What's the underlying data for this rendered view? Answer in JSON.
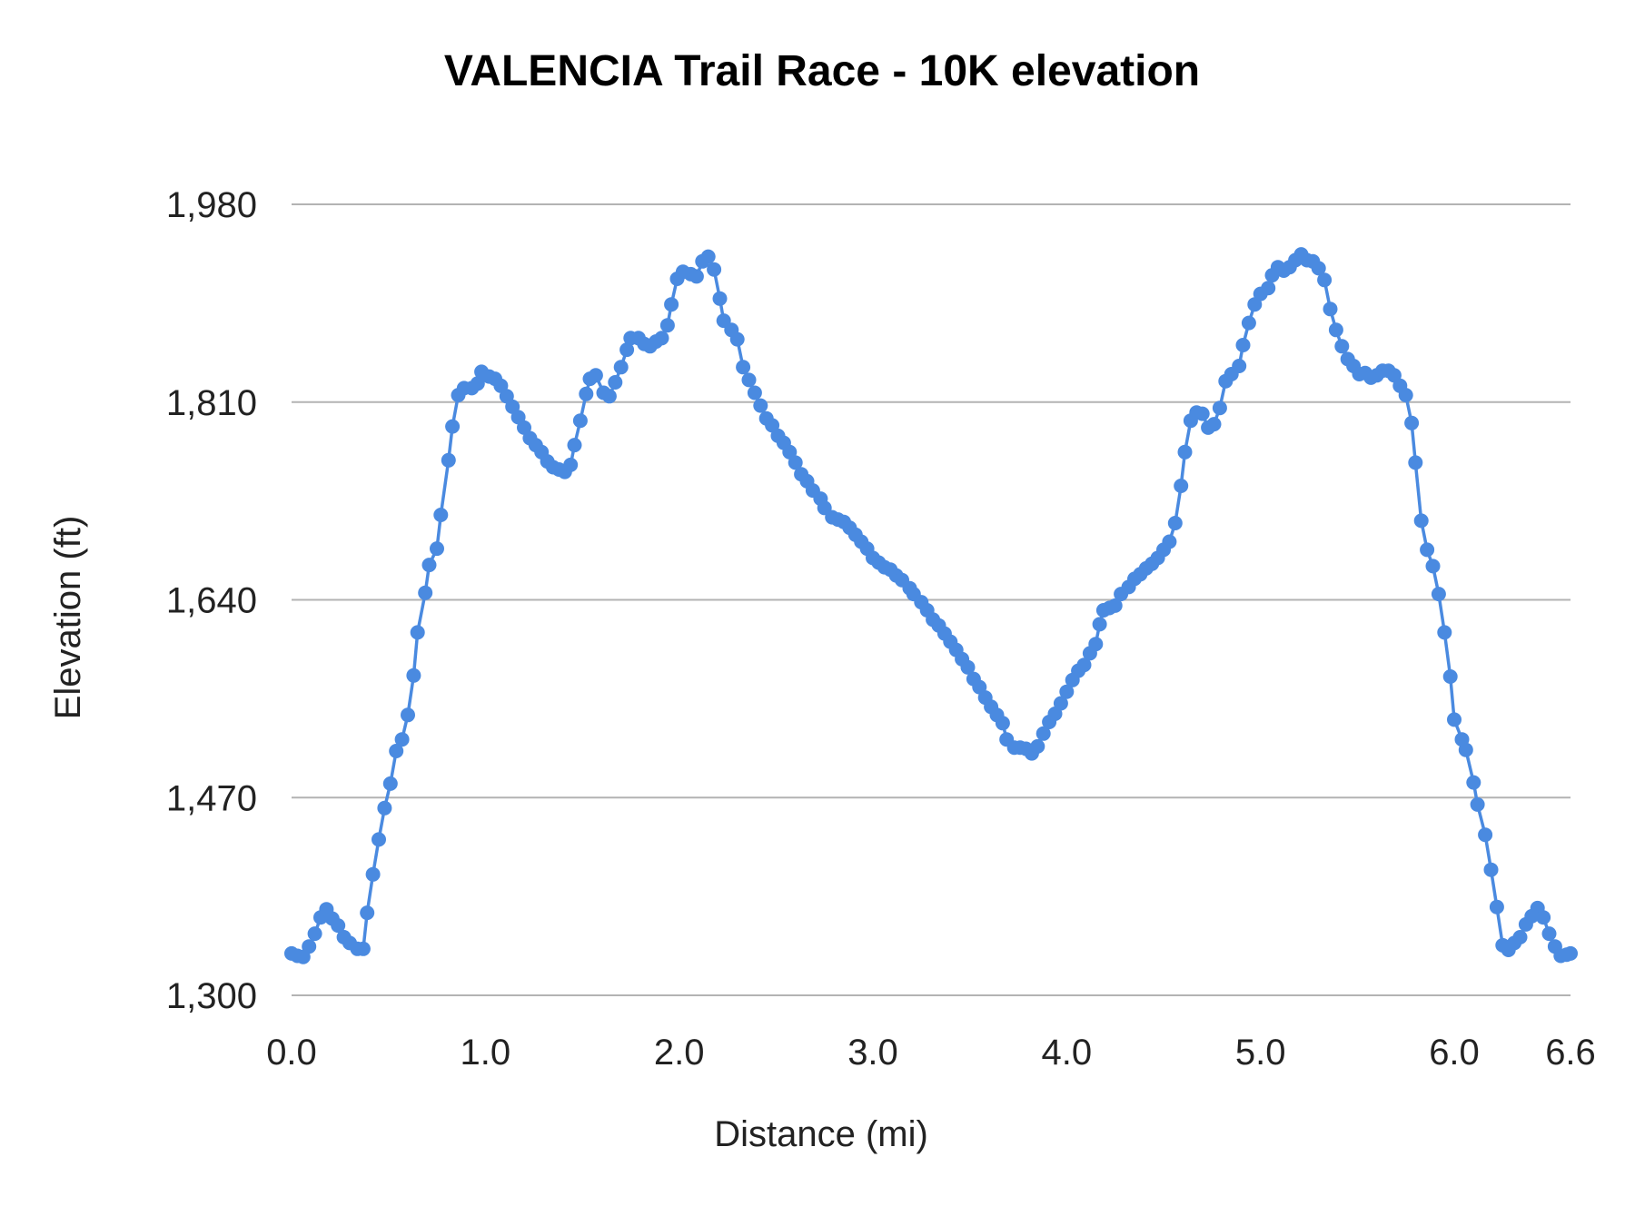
{
  "chart_data": {
    "type": "line",
    "title": "VALENCIA Trail Race - 10K elevation",
    "xlabel": "Distance (mi)",
    "ylabel": "Elevation (ft)",
    "xlim": [
      0,
      6.6
    ],
    "ylim": [
      1300,
      1980
    ],
    "xticks": [
      0,
      1,
      2,
      3,
      4,
      5,
      6,
      6.6
    ],
    "xtick_labels": [
      "0.0",
      "1.0",
      "2.0",
      "3.0",
      "4.0",
      "5.0",
      "6.0",
      "6.6"
    ],
    "yticks": [
      1300,
      1470,
      1640,
      1810,
      1980
    ],
    "ytick_labels": [
      "1,300",
      "1,470",
      "1,640",
      "1,810",
      "1,980"
    ],
    "grid": "horizontal",
    "markers": true,
    "color": "#4a8ae0",
    "gridColor": "#b3b3b3",
    "series": [
      {
        "x": [
          0.0,
          0.03,
          0.06,
          0.09,
          0.12,
          0.15,
          0.18,
          0.21,
          0.24,
          0.27,
          0.3,
          0.34,
          0.37,
          0.39,
          0.42,
          0.45,
          0.48,
          0.51,
          0.54,
          0.57,
          0.6,
          0.63,
          0.65,
          0.69,
          0.71,
          0.75,
          0.77,
          0.81,
          0.83,
          0.86,
          0.89,
          0.93,
          0.96,
          0.98,
          1.02,
          1.05,
          1.08,
          1.11,
          1.14,
          1.17,
          1.2,
          1.23,
          1.26,
          1.29,
          1.32,
          1.35,
          1.38,
          1.41,
          1.44,
          1.46,
          1.49,
          1.52,
          1.54,
          1.57,
          1.61,
          1.64,
          1.67,
          1.7,
          1.73,
          1.75,
          1.79,
          1.82,
          1.85,
          1.88,
          1.91,
          1.94,
          1.96,
          1.99,
          2.02,
          2.06,
          2.09,
          2.12,
          2.15,
          2.18,
          2.21,
          2.23,
          2.27,
          2.3,
          2.33,
          2.36,
          2.39,
          2.42,
          2.45,
          2.48,
          2.51,
          2.54,
          2.57,
          2.6,
          2.63,
          2.66,
          2.69,
          2.73,
          2.75,
          2.79,
          2.82,
          2.85,
          2.88,
          2.91,
          2.94,
          2.97,
          3.0,
          3.03,
          3.06,
          3.09,
          3.12,
          3.15,
          3.19,
          3.21,
          3.25,
          3.28,
          3.31,
          3.34,
          3.37,
          3.4,
          3.43,
          3.46,
          3.49,
          3.52,
          3.55,
          3.58,
          3.61,
          3.64,
          3.67,
          3.69,
          3.73,
          3.76,
          3.79,
          3.82,
          3.85,
          3.88,
          3.91,
          3.94,
          3.97,
          4.0,
          4.03,
          4.06,
          4.09,
          4.12,
          4.15,
          4.17,
          4.19,
          4.22,
          4.25,
          4.28,
          4.32,
          4.35,
          4.38,
          4.41,
          4.44,
          4.47,
          4.5,
          4.53,
          4.56,
          4.59,
          4.61,
          4.64,
          4.67,
          4.7,
          4.73,
          4.76,
          4.79,
          4.82,
          4.85,
          4.89,
          4.91,
          4.94,
          4.97,
          5.0,
          5.04,
          5.06,
          5.09,
          5.12,
          5.15,
          5.18,
          5.21,
          5.24,
          5.27,
          5.3,
          5.33,
          5.36,
          5.39,
          5.42,
          5.45,
          5.48,
          5.51,
          5.54,
          5.57,
          5.6,
          5.63,
          5.66,
          5.69,
          5.72,
          5.75,
          5.78,
          5.8,
          5.83,
          5.86,
          5.89,
          5.92,
          5.95,
          5.98,
          6.0,
          6.04,
          6.06,
          6.1,
          6.12,
          6.16,
          6.19,
          6.22,
          6.25,
          6.28,
          6.31,
          6.34,
          6.37,
          6.4,
          6.43,
          6.46,
          6.49,
          6.52,
          6.55,
          6.58,
          6.6
        ],
        "y": [
          1336,
          1334,
          1333,
          1342,
          1353,
          1367,
          1374,
          1366,
          1360,
          1350,
          1345,
          1340,
          1340,
          1371,
          1404,
          1434,
          1461,
          1482,
          1510,
          1520,
          1541,
          1575,
          1612,
          1646,
          1670,
          1684,
          1713,
          1760,
          1789,
          1816,
          1822,
          1822,
          1826,
          1836,
          1832,
          1830,
          1824,
          1815,
          1806,
          1797,
          1788,
          1779,
          1773,
          1767,
          1759,
          1754,
          1752,
          1750,
          1756,
          1773,
          1794,
          1817,
          1830,
          1833,
          1818,
          1815,
          1827,
          1840,
          1855,
          1865,
          1865,
          1860,
          1858,
          1862,
          1865,
          1876,
          1894,
          1916,
          1922,
          1920,
          1918,
          1931,
          1935,
          1924,
          1899,
          1880,
          1872,
          1864,
          1840,
          1829,
          1818,
          1807,
          1796,
          1790,
          1781,
          1775,
          1767,
          1758,
          1748,
          1742,
          1734,
          1727,
          1719,
          1711,
          1709,
          1707,
          1702,
          1696,
          1690,
          1684,
          1676,
          1672,
          1668,
          1666,
          1661,
          1657,
          1650,
          1645,
          1638,
          1631,
          1623,
          1618,
          1611,
          1604,
          1597,
          1589,
          1582,
          1572,
          1565,
          1556,
          1548,
          1541,
          1534,
          1520,
          1513,
          1513,
          1512,
          1508,
          1514,
          1525,
          1535,
          1542,
          1551,
          1561,
          1571,
          1579,
          1584,
          1594,
          1602,
          1619,
          1631,
          1633,
          1635,
          1645,
          1651,
          1658,
          1662,
          1667,
          1671,
          1676,
          1683,
          1690,
          1706,
          1738,
          1767,
          1794,
          1801,
          1800,
          1788,
          1791,
          1805,
          1828,
          1834,
          1841,
          1859,
          1878,
          1894,
          1903,
          1908,
          1919,
          1926,
          1923,
          1926,
          1932,
          1937,
          1932,
          1931,
          1925,
          1915,
          1890,
          1872,
          1858,
          1847,
          1841,
          1834,
          1835,
          1831,
          1833,
          1837,
          1837,
          1833,
          1824,
          1816,
          1792,
          1758,
          1708,
          1683,
          1669,
          1645,
          1612,
          1574,
          1537,
          1520,
          1511,
          1483,
          1464,
          1438,
          1408,
          1376,
          1343,
          1339,
          1345,
          1350,
          1361,
          1368,
          1375,
          1367,
          1353,
          1342,
          1334,
          1335,
          1336
        ]
      }
    ]
  }
}
